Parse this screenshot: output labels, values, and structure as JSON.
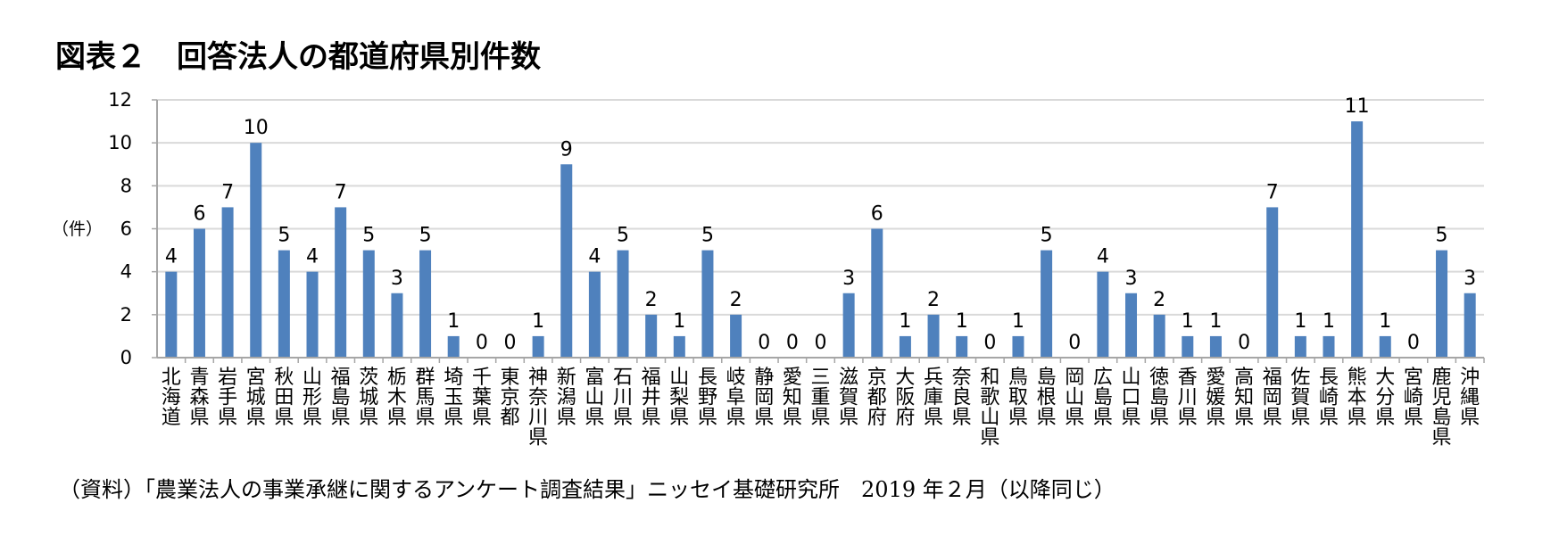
{
  "chart_data": {
    "type": "bar",
    "title": "図表２　回答法人の都道府県別件数",
    "ylabel": "（件）",
    "ylim": [
      0,
      12
    ],
    "yticks": [
      0,
      2,
      4,
      6,
      8,
      10,
      12
    ],
    "grid": true,
    "legend": "none",
    "bar_color": "#4f81bd",
    "categories": [
      "北海道",
      "青森県",
      "岩手県",
      "宮城県",
      "秋田県",
      "山形県",
      "福島県",
      "茨城県",
      "栃木県",
      "群馬県",
      "埼玉県",
      "千葉県",
      "東京都",
      "神奈川県",
      "新潟県",
      "富山県",
      "石川県",
      "福井県",
      "山梨県",
      "長野県",
      "岐阜県",
      "静岡県",
      "愛知県",
      "三重県",
      "滋賀県",
      "京都府",
      "大阪府",
      "兵庫県",
      "奈良県",
      "和歌山県",
      "鳥取県",
      "島根県",
      "岡山県",
      "広島県",
      "山口県",
      "徳島県",
      "香川県",
      "愛媛県",
      "高知県",
      "福岡県",
      "佐賀県",
      "長崎県",
      "熊本県",
      "大分県",
      "宮崎県",
      "鹿児島県",
      "沖縄県"
    ],
    "values": [
      4,
      6,
      7,
      10,
      5,
      4,
      7,
      5,
      3,
      5,
      1,
      0,
      0,
      1,
      9,
      4,
      5,
      2,
      1,
      5,
      2,
      0,
      0,
      0,
      3,
      6,
      1,
      2,
      1,
      0,
      1,
      5,
      0,
      4,
      3,
      2,
      1,
      1,
      0,
      7,
      1,
      1,
      11,
      1,
      0,
      5,
      3
    ]
  },
  "source": "（資料）「農業法人の事業承継に関するアンケート調査結果」ニッセイ基礎研究所　2019 年２月（以降同じ）"
}
